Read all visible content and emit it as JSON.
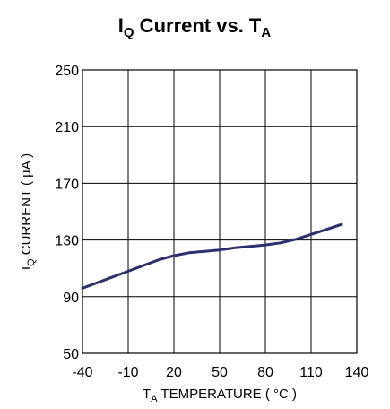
{
  "chart_data": {
    "type": "line",
    "title": {
      "main": "I",
      "sub": "Q",
      "mid": " Current  vs. T",
      "sub2": "A"
    },
    "xlabel": {
      "main": "T",
      "sub": "A",
      "rest": " TEMPERATURE ( °C )"
    },
    "ylabel": {
      "main": "I",
      "sub": "Q",
      "rest": " CURRENT ( µA )"
    },
    "xlim": [
      -40,
      140
    ],
    "ylim": [
      50,
      250
    ],
    "xticks": [
      -40,
      -10,
      20,
      50,
      80,
      110,
      140
    ],
    "yticks": [
      50,
      90,
      130,
      170,
      210,
      250
    ],
    "grid": true,
    "line_color": "#2b2f6e",
    "series": [
      {
        "x": [
          -40,
          -30,
          -20,
          -10,
          0,
          10,
          20,
          30,
          40,
          50,
          60,
          70,
          80,
          90,
          100,
          110,
          120,
          130
        ],
        "y": [
          96,
          100,
          104,
          108,
          112,
          116,
          119,
          121,
          122,
          123,
          124.5,
          125.5,
          126.5,
          128,
          130.5,
          134,
          137.5,
          141
        ]
      }
    ]
  }
}
